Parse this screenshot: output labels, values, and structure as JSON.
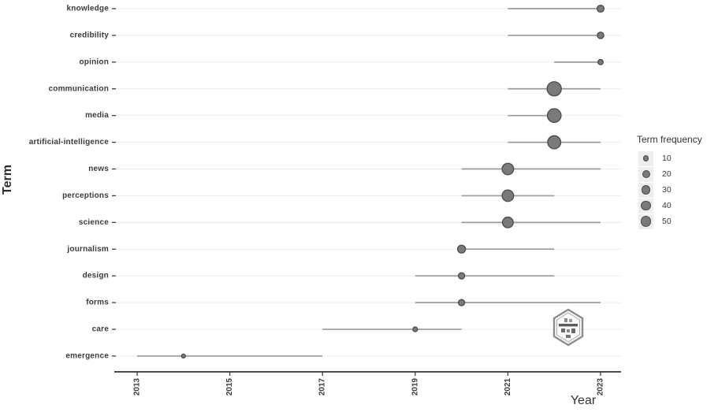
{
  "axis": {
    "x_label": "Year",
    "y_label": "Term"
  },
  "legend": {
    "title": "Term frequency",
    "items": [
      {
        "label": "10",
        "radius": 3.7
      },
      {
        "label": "20",
        "radius": 5.0
      },
      {
        "label": "30",
        "radius": 5.7
      },
      {
        "label": "40",
        "radius": 6.2
      },
      {
        "label": "50",
        "radius": 6.8
      }
    ]
  },
  "colors": {
    "dot_fill": "#7a7a7a",
    "dot_stroke": "#4a4a4a",
    "range_line": "#9a9a9a",
    "grid": "#ececec",
    "axis": "#2f2f2f",
    "tick": "#3b3b3b"
  },
  "watermark": {
    "name": "bibliometrix-logo"
  },
  "chart_data": {
    "type": "scatter",
    "subtype": "trend-topics-dot-plot",
    "title": "",
    "xlabel": "Year",
    "ylabel": "Term",
    "x_range": [
      2012.5,
      2023.5
    ],
    "x_ticks": [
      2013,
      2015,
      2017,
      2019,
      2021,
      2023
    ],
    "grid": "horizontal-only",
    "legend_position": "right",
    "size_legend": {
      "title": "Term frequency",
      "breaks": [
        10,
        20,
        30,
        40,
        50
      ]
    },
    "points": [
      {
        "term": "knowledge",
        "year": 2023,
        "freq": 15,
        "year_range": [
          2021,
          2023
        ],
        "radius_px": 4.4
      },
      {
        "term": "credibility",
        "year": 2023,
        "freq": 12,
        "year_range": [
          2021,
          2023
        ],
        "radius_px": 4.1
      },
      {
        "term": "opinion",
        "year": 2023,
        "freq": 8,
        "year_range": [
          2022,
          2023
        ],
        "radius_px": 3.3
      },
      {
        "term": "communication",
        "year": 2022,
        "freq": 55,
        "year_range": [
          2021,
          2023
        ],
        "radius_px": 9.0
      },
      {
        "term": "media",
        "year": 2022,
        "freq": 50,
        "year_range": [
          2021,
          2022
        ],
        "radius_px": 8.7
      },
      {
        "term": "artificial-intelligence",
        "year": 2022,
        "freq": 45,
        "year_range": [
          2021,
          2023
        ],
        "radius_px": 8.3
      },
      {
        "term": "news",
        "year": 2021,
        "freq": 35,
        "year_range": [
          2020,
          2023
        ],
        "radius_px": 7.3
      },
      {
        "term": "perceptions",
        "year": 2021,
        "freq": 35,
        "year_range": [
          2020,
          2022
        ],
        "radius_px": 7.3
      },
      {
        "term": "science",
        "year": 2021,
        "freq": 30,
        "year_range": [
          2020,
          2023
        ],
        "radius_px": 6.8
      },
      {
        "term": "journalism",
        "year": 2020,
        "freq": 20,
        "year_range": [
          2020,
          2022
        ],
        "radius_px": 5.0
      },
      {
        "term": "design",
        "year": 2020,
        "freq": 12,
        "year_range": [
          2019,
          2022
        ],
        "radius_px": 4.0
      },
      {
        "term": "forms",
        "year": 2020,
        "freq": 12,
        "year_range": [
          2019,
          2023
        ],
        "radius_px": 4.0
      },
      {
        "term": "care",
        "year": 2019,
        "freq": 8,
        "year_range": [
          2017,
          2020
        ],
        "radius_px": 3.0
      },
      {
        "term": "emergence",
        "year": 2014,
        "freq": 5,
        "year_range": [
          2013,
          2017
        ],
        "radius_px": 2.5
      }
    ]
  }
}
